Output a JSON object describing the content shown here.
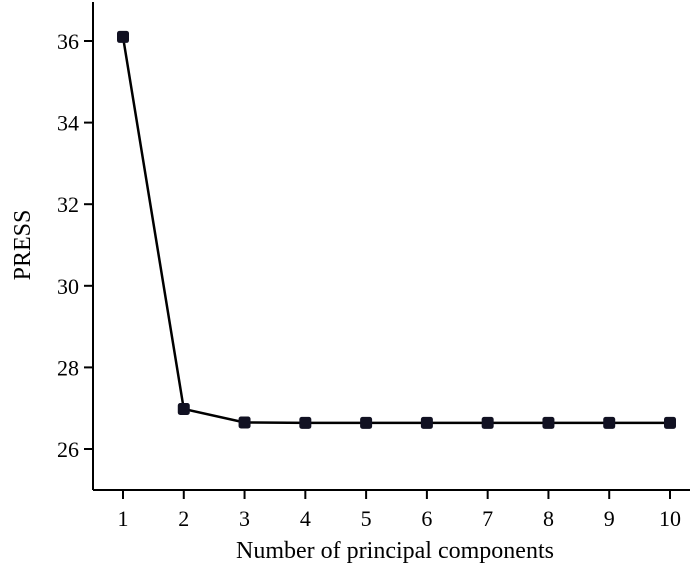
{
  "chart_data": {
    "type": "line",
    "xlabel": "Number of principal components",
    "ylabel": "PRESS",
    "x": [
      1,
      2,
      3,
      4,
      5,
      6,
      7,
      8,
      9,
      10
    ],
    "y": [
      36.1,
      26.98,
      26.65,
      26.64,
      26.64,
      26.64,
      26.64,
      26.64,
      26.64,
      26.64
    ],
    "xticks": [
      1,
      2,
      3,
      4,
      5,
      6,
      7,
      8,
      9,
      10
    ],
    "yticks": [
      26,
      28,
      30,
      32,
      34,
      36
    ],
    "xlim": [
      0.5,
      10.5
    ],
    "ylim": [
      25,
      37
    ],
    "grid": false,
    "legend": "none",
    "colors": {
      "line": "#000000",
      "marker": "#111122"
    }
  }
}
